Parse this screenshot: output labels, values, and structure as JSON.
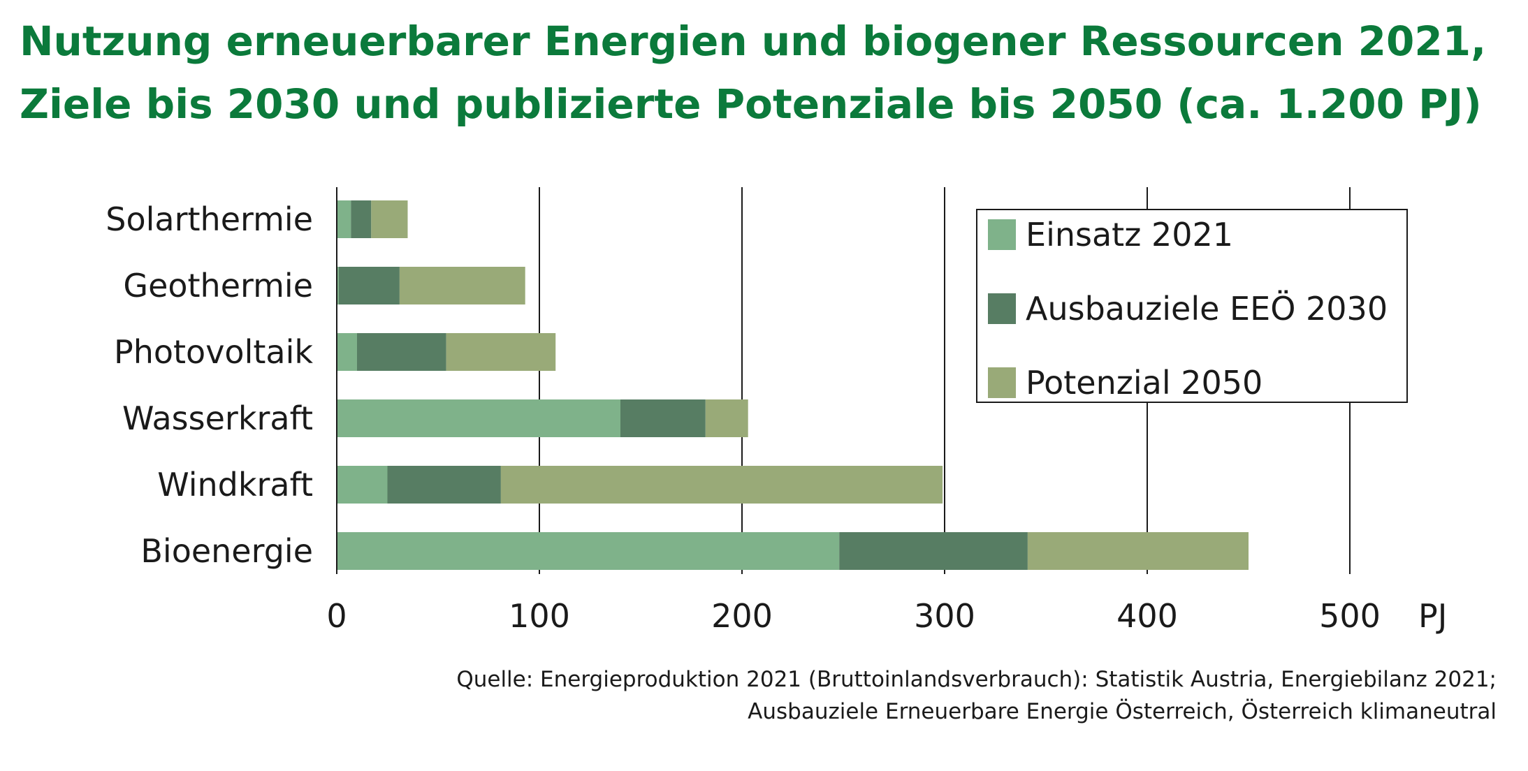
{
  "chart_data": {
    "type": "bar",
    "orientation": "horizontal",
    "stacked": true,
    "title": "Nutzung erneuerbarer Energien und biogener Ressourcen 2021,",
    "subtitle": "Ziele bis 2030 und publizierte Potenziale bis 2050 (ca. 1.200 PJ)",
    "xlabel": "PJ",
    "ylabel": "",
    "xlim": [
      0,
      500
    ],
    "xticks": [
      "0",
      "100",
      "200",
      "300",
      "400",
      "500"
    ],
    "xtick_values": [
      0,
      100,
      200,
      300,
      400,
      500
    ],
    "grid": "vertical",
    "legend_position": "top-right",
    "categories": [
      "Solarthermie",
      "Geothermie",
      "Photovoltaik",
      "Wasserkraft",
      "Windkraft",
      "Bioenergie"
    ],
    "series": [
      {
        "name": "Einsatz 2021",
        "color": "#7fb28a",
        "values": [
          7,
          1,
          10,
          140,
          25,
          248
        ]
      },
      {
        "name": "Ausbauziele EEÖ 2030",
        "color": "#577d63",
        "values": [
          10,
          30,
          44,
          42,
          56,
          93
        ]
      },
      {
        "name": "Potenzial 2050",
        "color": "#99aa78",
        "values": [
          18,
          62,
          54,
          21,
          218,
          109
        ]
      }
    ]
  },
  "source": {
    "line1": "Quelle: Energieproduktion 2021 (Bruttoinlandsverbrauch): Statistik Austria, Energiebilanz 2021;",
    "line2": "Ausbauziele Erneuerbare Energie Österreich,  Österreich klimaneutral"
  }
}
